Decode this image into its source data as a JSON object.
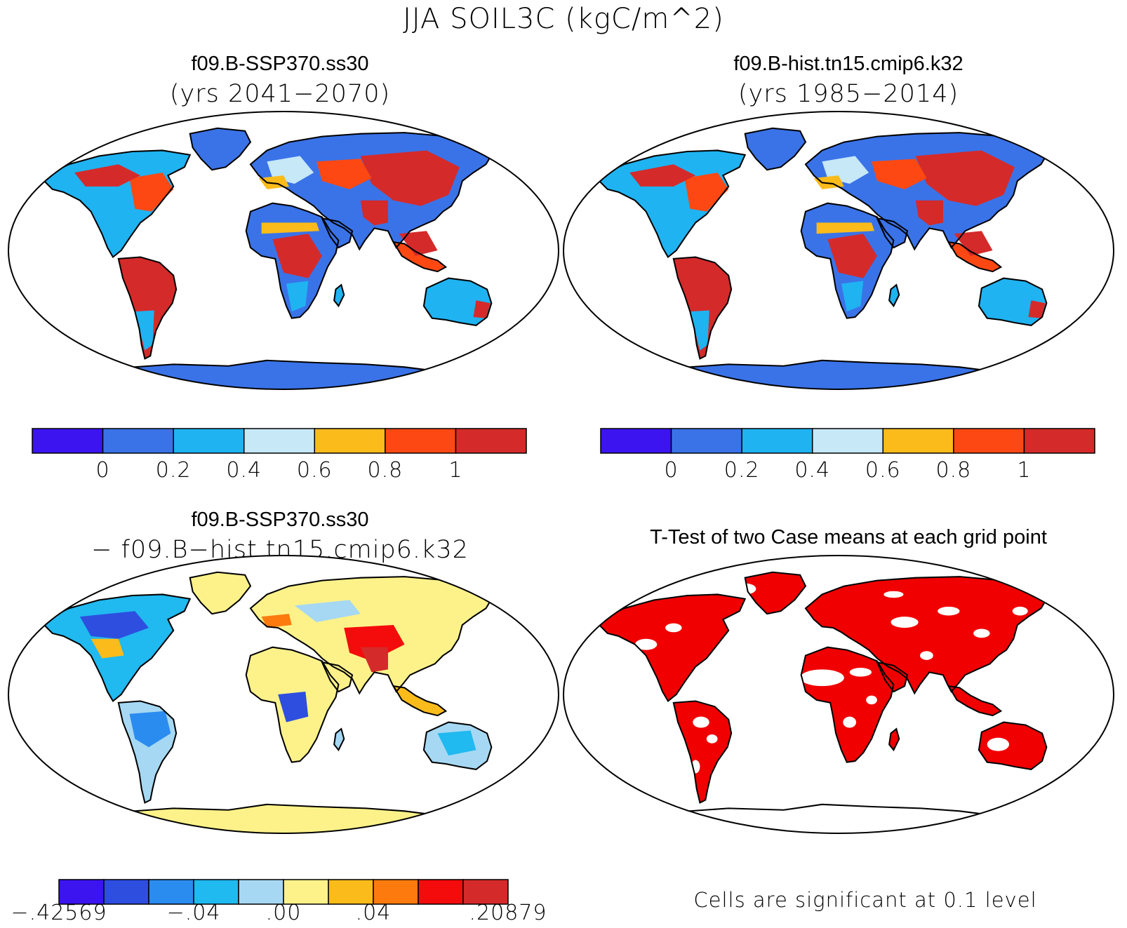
{
  "figure": {
    "title": "JJA SOIL3C (kgC/m^2)"
  },
  "panels": [
    {
      "id": "top-left",
      "title_line1": "f09.B-SSP370.ss30",
      "title_line2": "(yrs 2041−2070)",
      "fill_style": "absolute"
    },
    {
      "id": "top-right",
      "title_line1": "f09.B-hist.tn15.cmip6.k32",
      "title_line2": "(yrs 1985−2014)",
      "fill_style": "absolute"
    },
    {
      "id": "bottom-left",
      "title_line1": "f09.B-SSP370.ss30",
      "title_line2": "− f09.B−hist.tn15.cmip6.k32",
      "fill_style": "difference"
    },
    {
      "id": "bottom-right",
      "title_line1": "T-Test of two Case means at each grid point",
      "title_line2": "",
      "fill_style": "significance",
      "note": "Cells are significant at 0.1 level"
    }
  ],
  "colorbars": {
    "absolute": {
      "colors": [
        "#3b14f0",
        "#3a73e8",
        "#1fb3f2",
        "#c6e8f7",
        "#fbbb1a",
        "#fd4813",
        "#d52a2a"
      ],
      "labels": [
        "0",
        "0.2",
        "0.4",
        "0.6",
        "0.8",
        "1"
      ]
    },
    "difference": {
      "colors": [
        "#3b14f0",
        "#2e4ee0",
        "#2b8cf0",
        "#20b9f0",
        "#a6d8f3",
        "#fdf28a",
        "#fbbb1a",
        "#fc7a0e",
        "#f40b0b",
        "#d52a2a"
      ],
      "labels": [
        "−.42569",
        "−.04",
        ".00",
        ".04",
        ".20879"
      ]
    }
  },
  "colors": {
    "ocean": "#ffffff",
    "outline": "#000000",
    "significant": "#f00000",
    "antarctica_absolute": "#3a73e8",
    "antarctica_difference": "#fdf28a"
  }
}
